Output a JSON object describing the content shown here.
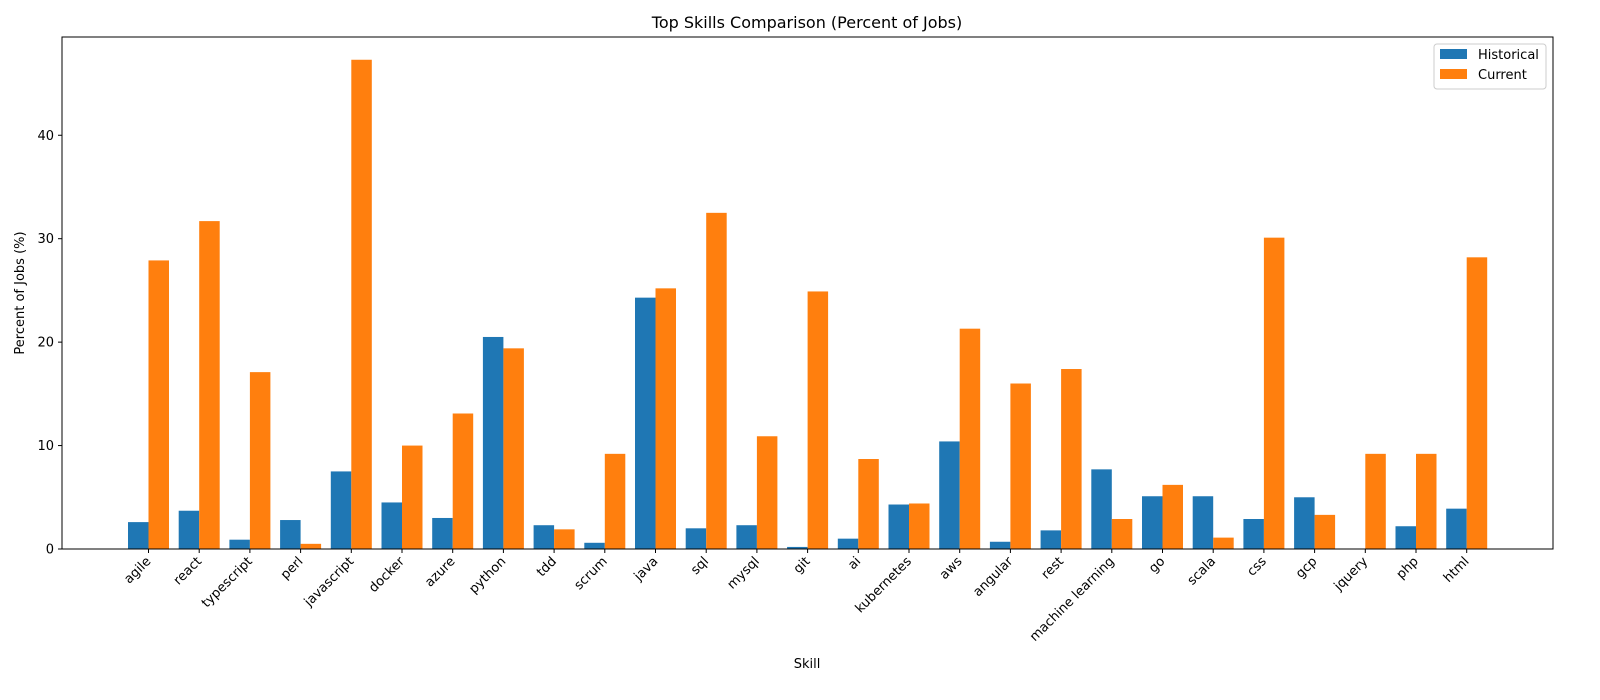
{
  "chart_data": {
    "type": "bar",
    "title": "Top Skills Comparison (Percent of Jobs)",
    "xlabel": "Skill",
    "ylabel": "Percent of Jobs (%)",
    "ylim": [
      0,
      49.5
    ],
    "yticks": [
      0,
      10,
      20,
      30,
      40
    ],
    "grid": false,
    "legend_position": "top-right",
    "categories": [
      "agile",
      "react",
      "typescript",
      "perl",
      "javascript",
      "docker",
      "azure",
      "python",
      "tdd",
      "scrum",
      "java",
      "sql",
      "mysql",
      "git",
      "ai",
      "kubernetes",
      "aws",
      "angular",
      "rest",
      "machine learning",
      "go",
      "scala",
      "css",
      "gcp",
      "jquery",
      "php",
      "html"
    ],
    "series": [
      {
        "name": "Historical",
        "color": "#1f77b4",
        "values": [
          2.6,
          3.7,
          0.9,
          2.8,
          7.5,
          4.5,
          3.0,
          20.5,
          2.3,
          0.6,
          24.3,
          2.0,
          2.3,
          0.2,
          1.0,
          4.3,
          10.4,
          0.7,
          1.8,
          7.7,
          5.1,
          5.1,
          2.9,
          5.0,
          0.0,
          2.2,
          3.9
        ]
      },
      {
        "name": "Current",
        "color": "#ff7f0e",
        "values": [
          27.9,
          31.7,
          17.1,
          0.5,
          47.3,
          10.0,
          13.1,
          19.4,
          1.9,
          9.2,
          25.2,
          32.5,
          10.9,
          24.9,
          8.7,
          4.4,
          21.3,
          16.0,
          17.4,
          2.9,
          6.2,
          1.1,
          30.1,
          3.3,
          9.2,
          9.2,
          28.2
        ]
      }
    ]
  }
}
